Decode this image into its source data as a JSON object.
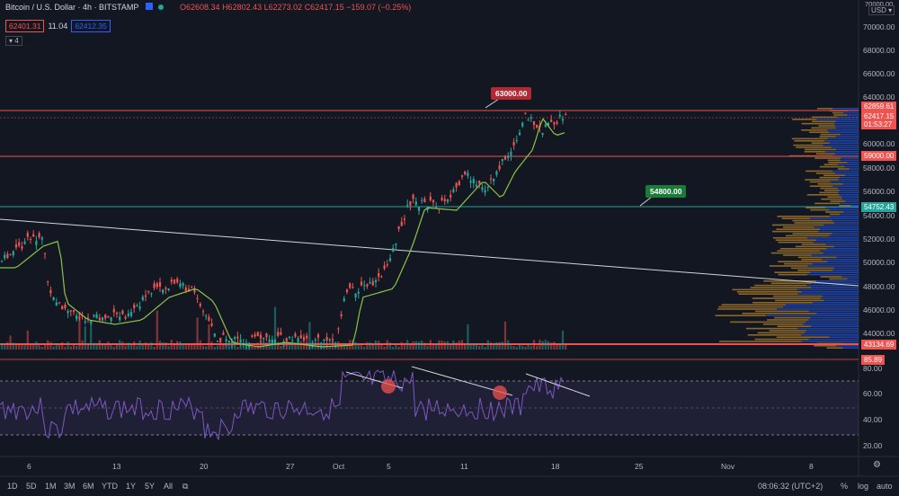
{
  "header": {
    "symbol": "Bitcoin / U.S. Dollar · 4h · BITSTAMP",
    "O": "O62608.34",
    "H": "H62802.43",
    "L": "L62273.02",
    "C": "C62417.15",
    "change": "−159.07 (−0.25%)"
  },
  "sell_price": "62401.31",
  "spread": "11.04",
  "buy_price": "62412.35",
  "indicator_count": "4",
  "currency": "USD",
  "currency_top": "70000.00",
  "price_ticks": [
    "70000.00",
    "68000.00",
    "66000.00",
    "64000.00",
    "60000.00",
    "58000.00",
    "56000.00",
    "54000.00",
    "52000.00",
    "50000.00",
    "48000.00",
    "46000.00",
    "44000.00"
  ],
  "price_labels": {
    "p1": "62859.61",
    "p2": "62417.15",
    "p2_time": "01:53:27",
    "p3": "59000.00",
    "p4": "54752.43",
    "p5": "43134.69"
  },
  "callouts": {
    "c1": "63000.00",
    "c2": "54800.00"
  },
  "rsi_label": "85.89",
  "rsi_ticks": [
    "80.00",
    "60.00",
    "40.00",
    "20.00"
  ],
  "x_ticks": [
    "6",
    "13",
    "20",
    "27",
    "Oct",
    "5",
    "11",
    "18",
    "25",
    "Nov",
    "8"
  ],
  "bottom": {
    "ranges": [
      "1D",
      "5D",
      "1M",
      "3M",
      "6M",
      "YTD",
      "1Y",
      "5Y",
      "All"
    ],
    "time": "08:06:32 (UTC+2)",
    "percent": "%",
    "log": "log",
    "auto": "auto"
  },
  "colors": {
    "green": "#26a69a",
    "red": "#ef5350",
    "ma": "#8bc34a",
    "rsi": "#7e57c2"
  }
}
